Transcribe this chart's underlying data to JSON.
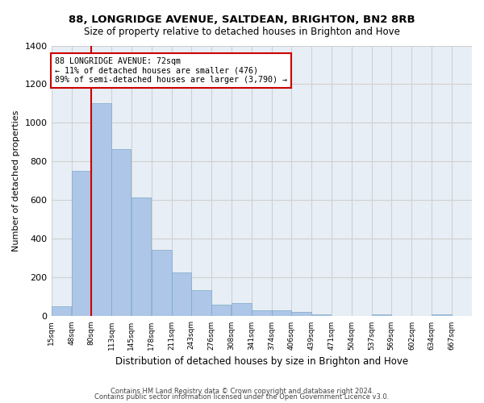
{
  "title": "88, LONGRIDGE AVENUE, SALTDEAN, BRIGHTON, BN2 8RB",
  "subtitle": "Size of property relative to detached houses in Brighton and Hove",
  "xlabel": "Distribution of detached houses by size in Brighton and Hove",
  "ylabel": "Number of detached properties",
  "categories": [
    "15sqm",
    "48sqm",
    "80sqm",
    "113sqm",
    "145sqm",
    "178sqm",
    "211sqm",
    "243sqm",
    "276sqm",
    "308sqm",
    "341sqm",
    "374sqm",
    "406sqm",
    "439sqm",
    "471sqm",
    "504sqm",
    "537sqm",
    "569sqm",
    "602sqm",
    "634sqm",
    "667sqm"
  ],
  "values": [
    50,
    750,
    1100,
    865,
    615,
    345,
    225,
    135,
    60,
    70,
    30,
    30,
    22,
    12,
    0,
    0,
    12,
    0,
    0,
    12,
    0
  ],
  "bar_color": "#aec6e8",
  "bar_edge_color": "#7aaac8",
  "grid_color": "#d0d0d0",
  "bg_color": "#e8eef5",
  "annotation_box_color": "#cc0000",
  "annotation_text": "88 LONGRIDGE AVENUE: 72sqm\n← 11% of detached houses are smaller (476)\n89% of semi-detached houses are larger (3,790) →",
  "vline_color": "#cc0000",
  "bin_edges": [
    15,
    48,
    80,
    113,
    145,
    178,
    211,
    243,
    276,
    308,
    341,
    374,
    406,
    439,
    471,
    504,
    537,
    569,
    602,
    634,
    667,
    700
  ],
  "ylim": [
    0,
    1400
  ],
  "yticks": [
    0,
    200,
    400,
    600,
    800,
    1000,
    1200,
    1400
  ],
  "footer1": "Contains HM Land Registry data © Crown copyright and database right 2024.",
  "footer2": "Contains public sector information licensed under the Open Government Licence v3.0."
}
